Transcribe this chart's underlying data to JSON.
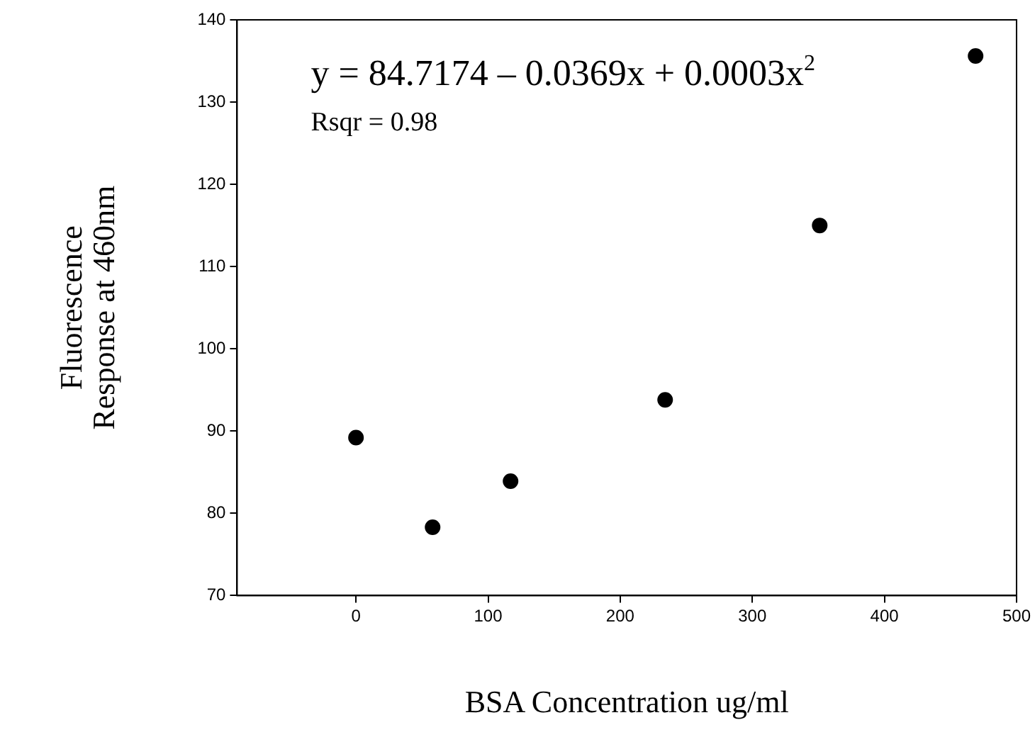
{
  "chart_data": {
    "type": "scatter",
    "xlabel": "BSA Concentration ug/ml",
    "ylabel": "Fluorescence\nResponse at 460nm",
    "annotations": [
      "y = 84.7174 – 0.0369x + 0.0003x$^{2}$",
      "Rsqr = 0.98"
    ],
    "x": [
      0,
      58,
      117,
      234,
      351,
      469
    ],
    "series": [
      {
        "color": "#000000",
        "values": [
          89.2,
          78.3,
          83.9,
          93.8,
          115.0,
          135.6
        ]
      }
    ],
    "xlim": [
      -90,
      500
    ],
    "xticks": [
      0,
      100,
      200,
      300,
      400,
      500
    ],
    "ylim": [
      70,
      140
    ],
    "yticks": [
      70,
      80,
      90,
      100,
      110,
      120,
      130,
      140
    ],
    "marker": "circle",
    "grid": false,
    "legend": false
  }
}
